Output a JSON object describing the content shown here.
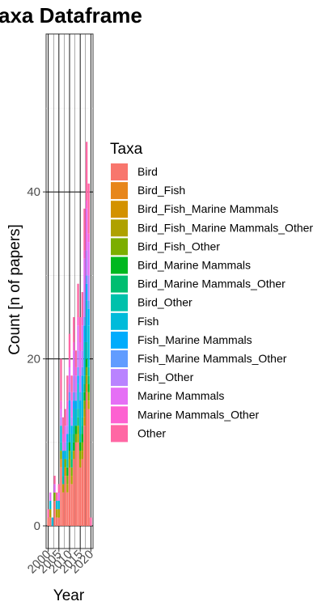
{
  "chart_data": {
    "type": "bar",
    "stacked": true,
    "title": "axa Dataframe",
    "xlabel": "Year",
    "ylabel": "Count [n of papers]",
    "xlim": [
      1999,
      2021
    ],
    "ylim": [
      0,
      60
    ],
    "x_ticks": [
      2000,
      2005,
      2010,
      2015,
      2020
    ],
    "y_ticks": [
      0,
      20,
      40
    ],
    "grid": true,
    "legend": {
      "title": "Taxa",
      "position": "right"
    },
    "x": [
      2000,
      2001,
      2002,
      2003,
      2004,
      2005,
      2006,
      2007,
      2008,
      2009,
      2010,
      2011,
      2012,
      2013,
      2014,
      2015,
      2016,
      2017,
      2018,
      2019,
      2020
    ],
    "series": [
      {
        "name": "Bird",
        "color": "#F8766D",
        "values": [
          1,
          1,
          0,
          3,
          1,
          1,
          7,
          4,
          6,
          4,
          7,
          5,
          8,
          10,
          10,
          7,
          8,
          12,
          16,
          14,
          0
        ]
      },
      {
        "name": "Bird_Fish",
        "color": "#E7861B",
        "values": [
          0,
          0,
          0,
          0,
          0,
          0,
          1,
          0,
          0,
          0,
          0,
          0,
          0,
          0,
          0,
          0,
          0,
          0,
          1,
          0,
          0
        ]
      },
      {
        "name": "Bird_Fish_Marine Mammals",
        "color": "#D39200",
        "values": [
          0,
          0,
          0,
          0,
          0,
          0,
          0,
          0,
          1,
          0,
          0,
          0,
          0,
          0,
          0,
          0,
          0,
          1,
          0,
          0,
          0
        ]
      },
      {
        "name": "Bird_Fish_Marine Mammals_Other",
        "color": "#AFA100",
        "values": [
          0,
          1,
          0,
          0,
          1,
          1,
          0,
          1,
          0,
          1,
          1,
          1,
          1,
          0,
          1,
          1,
          1,
          1,
          1,
          1,
          0
        ]
      },
      {
        "name": "Bird_Fish_Other",
        "color": "#7CAE00",
        "values": [
          0,
          0,
          0,
          1,
          0,
          0,
          1,
          0,
          1,
          1,
          1,
          1,
          0,
          1,
          1,
          1,
          1,
          1,
          1,
          1,
          0
        ]
      },
      {
        "name": "Bird_Marine Mammals",
        "color": "#00B81F",
        "values": [
          0,
          0,
          0,
          0,
          0,
          0,
          0,
          0,
          0,
          1,
          1,
          0,
          1,
          1,
          0,
          1,
          1,
          1,
          1,
          1,
          0
        ]
      },
      {
        "name": "Bird_Marine Mammals_Other",
        "color": "#00BE70",
        "values": [
          0,
          0,
          0,
          0,
          0,
          0,
          0,
          0,
          0,
          0,
          0,
          1,
          1,
          0,
          1,
          0,
          1,
          1,
          0,
          1,
          0
        ]
      },
      {
        "name": "Bird_Other",
        "color": "#00C1AB",
        "values": [
          0,
          0,
          0,
          0,
          0,
          0,
          1,
          1,
          0,
          1,
          1,
          1,
          1,
          0,
          1,
          1,
          1,
          1,
          2,
          1,
          0
        ]
      },
      {
        "name": "Fish",
        "color": "#00BBDA",
        "values": [
          0,
          1,
          1,
          0,
          1,
          1,
          2,
          2,
          1,
          2,
          3,
          2,
          2,
          2,
          3,
          3,
          3,
          4,
          5,
          5,
          0
        ]
      },
      {
        "name": "Fish_Marine Mammals",
        "color": "#00ACFC",
        "values": [
          0,
          0,
          0,
          0,
          0,
          0,
          0,
          1,
          0,
          1,
          1,
          1,
          1,
          1,
          1,
          1,
          2,
          2,
          2,
          2,
          0
        ]
      },
      {
        "name": "Fish_Marine Mammals_Other",
        "color": "#619CFF",
        "values": [
          0,
          0,
          0,
          0,
          0,
          0,
          0,
          0,
          0,
          0,
          1,
          0,
          1,
          0,
          1,
          1,
          1,
          1,
          1,
          1,
          0
        ]
      },
      {
        "name": "Fish_Other",
        "color": "#B983FF",
        "values": [
          0,
          0,
          0,
          0,
          0,
          0,
          1,
          0,
          1,
          1,
          1,
          1,
          2,
          1,
          2,
          2,
          2,
          3,
          3,
          3,
          0
        ]
      },
      {
        "name": "Marine Mammals",
        "color": "#E56FF5",
        "values": [
          0,
          1,
          0,
          1,
          0,
          1,
          1,
          1,
          2,
          2,
          2,
          2,
          3,
          2,
          3,
          3,
          3,
          4,
          5,
          4,
          0
        ]
      },
      {
        "name": "Marine Mammals_Other",
        "color": "#FD61D1",
        "values": [
          0,
          0,
          0,
          0,
          0,
          0,
          1,
          1,
          0,
          1,
          1,
          1,
          1,
          1,
          1,
          1,
          1,
          1,
          1,
          1,
          0
        ]
      },
      {
        "name": "Other",
        "color": "#FF67A4",
        "values": [
          1,
          0,
          0,
          1,
          1,
          1,
          5,
          2,
          2,
          3,
          3,
          2,
          3,
          2,
          4,
          3,
          3,
          5,
          7,
          6,
          1
        ]
      }
    ]
  }
}
